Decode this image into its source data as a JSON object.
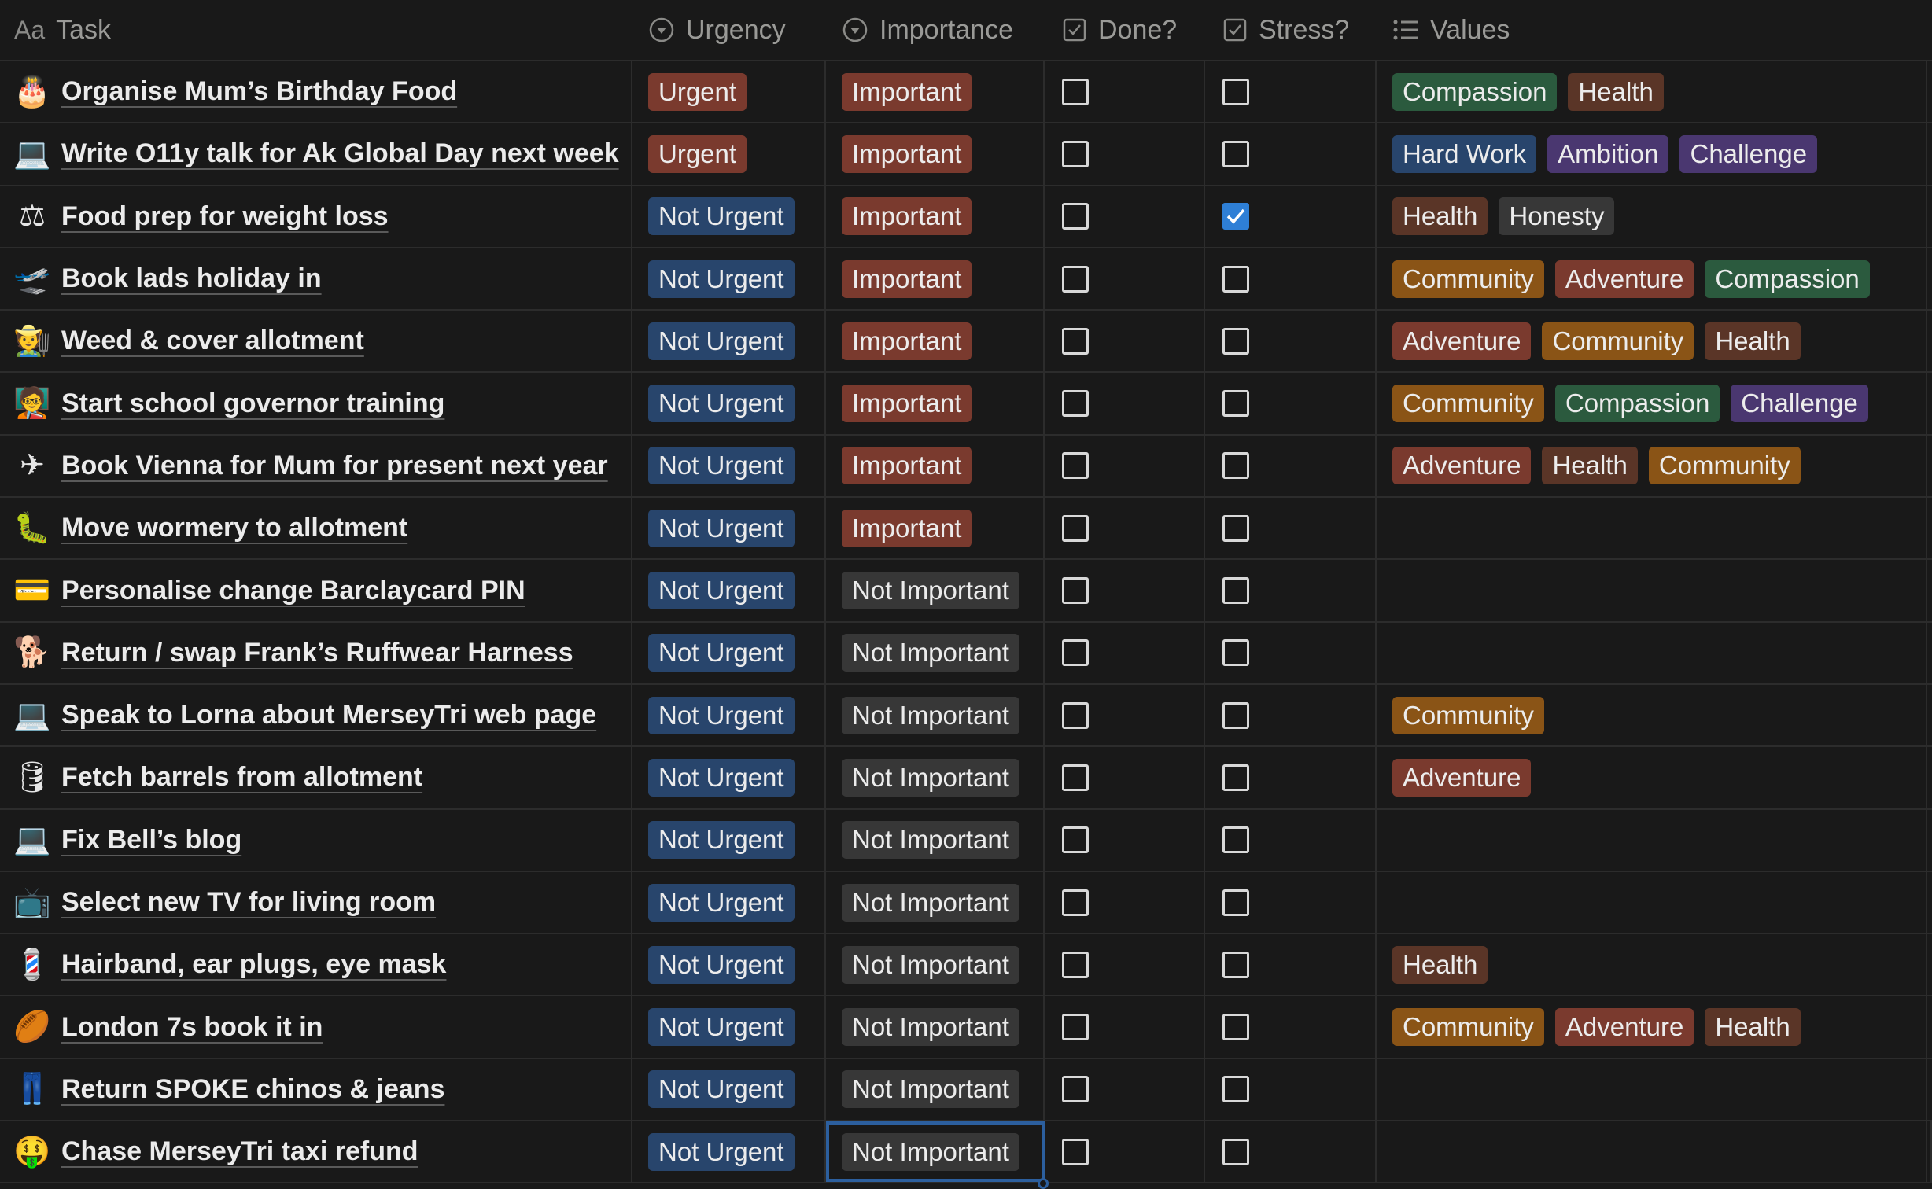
{
  "colors": {
    "background": "#191919",
    "urgent": "#7a3a2e",
    "not_urgent": "#28456c",
    "important": "#7a3a2e",
    "not_important": "#373737",
    "checkbox_checked": "#2e7fd6",
    "Compassion": "#2b5a3e",
    "Health": "#5a3527",
    "Hard Work": "#28456c",
    "Ambition": "#4a3770",
    "Challenge": "#4a3770",
    "Honesty": "#373737",
    "Community": "#8a5416",
    "Adventure": "#7a3a2e"
  },
  "headers": {
    "task": "Task",
    "task_prefix": "Aa",
    "urgency": "Urgency",
    "importance": "Importance",
    "done": "Done?",
    "stress": "Stress?",
    "values": "Values"
  },
  "rows": [
    {
      "icon": "birthday-cake-icon",
      "glyph": "🎂",
      "title": "Organise Mum’s Birthday Food",
      "urgency": "Urgent",
      "importance": "Important",
      "done": false,
      "stress": false,
      "values": [
        "Compassion",
        "Health"
      ]
    },
    {
      "icon": "laptop-icon",
      "glyph": "💻",
      "title": "Write O11y talk for Ak Global Day next week",
      "urgency": "Urgent",
      "importance": "Important",
      "done": false,
      "stress": false,
      "values": [
        "Hard Work",
        "Ambition",
        "Challenge"
      ]
    },
    {
      "icon": "scales-icon",
      "glyph": "⚖",
      "title": "Food prep for weight loss",
      "urgency": "Not Urgent",
      "importance": "Important",
      "done": false,
      "stress": true,
      "values": [
        "Health",
        "Honesty"
      ]
    },
    {
      "icon": "airplane-departure-icon",
      "glyph": "🛫",
      "title": "Book lads holiday in",
      "urgency": "Not Urgent",
      "importance": "Important",
      "done": false,
      "stress": false,
      "values": [
        "Community",
        "Adventure",
        "Compassion"
      ]
    },
    {
      "icon": "farmer-icon",
      "glyph": "🧑‍🌾",
      "title": "Weed & cover allotment",
      "urgency": "Not Urgent",
      "importance": "Important",
      "done": false,
      "stress": false,
      "values": [
        "Adventure",
        "Community",
        "Health"
      ]
    },
    {
      "icon": "teacher-icon",
      "glyph": "🧑‍🏫",
      "title": "Start school governor training",
      "urgency": "Not Urgent",
      "importance": "Important",
      "done": false,
      "stress": false,
      "values": [
        "Community",
        "Compassion",
        "Challenge"
      ]
    },
    {
      "icon": "airplane-icon",
      "glyph": "✈",
      "title": "Book Vienna for Mum for present next year",
      "urgency": "Not Urgent",
      "importance": "Important",
      "done": false,
      "stress": false,
      "values": [
        "Adventure",
        "Health",
        "Community"
      ]
    },
    {
      "icon": "worm-icon",
      "glyph": "🐛",
      "title": "Move wormery to allotment",
      "urgency": "Not Urgent",
      "importance": "Important",
      "done": false,
      "stress": false,
      "values": []
    },
    {
      "icon": "credit-card-icon",
      "glyph": "💳",
      "title": "Personalise change Barclaycard PIN",
      "urgency": "Not Urgent",
      "importance": "Not Important",
      "done": false,
      "stress": false,
      "values": []
    },
    {
      "icon": "dog-icon",
      "glyph": "🐕",
      "title": "Return / swap Frank’s Ruffwear Harness",
      "urgency": "Not Urgent",
      "importance": "Not Important",
      "done": false,
      "stress": false,
      "values": []
    },
    {
      "icon": "laptop-icon",
      "glyph": "💻",
      "title": "Speak to Lorna about MerseyTri web page",
      "urgency": "Not Urgent",
      "importance": "Not Important",
      "done": false,
      "stress": false,
      "values": [
        "Community"
      ]
    },
    {
      "icon": "barrel-icon",
      "glyph": "🛢",
      "title": "Fetch barrels from allotment",
      "urgency": "Not Urgent",
      "importance": "Not Important",
      "done": false,
      "stress": false,
      "values": [
        "Adventure"
      ]
    },
    {
      "icon": "laptop-icon",
      "glyph": "💻",
      "title": "Fix Bell’s blog",
      "urgency": "Not Urgent",
      "importance": "Not Important",
      "done": false,
      "stress": false,
      "values": []
    },
    {
      "icon": "television-icon",
      "glyph": "📺",
      "title": "Select new TV for living room",
      "urgency": "Not Urgent",
      "importance": "Not Important",
      "done": false,
      "stress": false,
      "values": []
    },
    {
      "icon": "barber-pole-icon",
      "glyph": "💈",
      "title": "Hairband, ear plugs, eye mask",
      "urgency": "Not Urgent",
      "importance": "Not Important",
      "done": false,
      "stress": false,
      "values": [
        "Health"
      ]
    },
    {
      "icon": "rugby-ball-icon",
      "glyph": "🏉",
      "title": "London 7s book it in",
      "urgency": "Not Urgent",
      "importance": "Not Important",
      "done": false,
      "stress": false,
      "values": [
        "Community",
        "Adventure",
        "Health"
      ]
    },
    {
      "icon": "jeans-icon",
      "glyph": "👖",
      "title": "Return SPOKE chinos & jeans",
      "urgency": "Not Urgent",
      "importance": "Not Important",
      "done": false,
      "stress": false,
      "values": []
    },
    {
      "icon": "money-mouth-face-icon",
      "glyph": "🤑",
      "title": "Chase MerseyTri taxi refund",
      "urgency": "Not Urgent",
      "importance": "Not Important",
      "done": false,
      "stress": false,
      "values": [],
      "selected_cell": "importance"
    }
  ]
}
